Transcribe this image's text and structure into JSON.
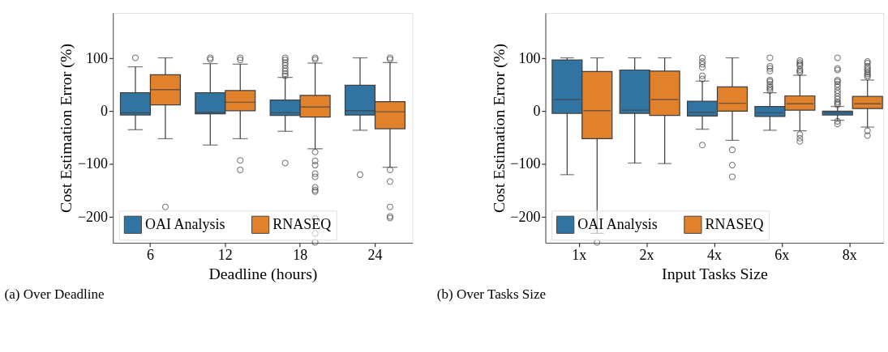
{
  "chart_data": [
    {
      "type": "box",
      "xlabel": "Deadline (hours)",
      "ylabel": "Cost Estimation Error (%)",
      "categories": [
        "6",
        "12",
        "18",
        "24"
      ],
      "ylim": [
        -250,
        185
      ],
      "yticks": [
        -200,
        -100,
        0,
        100
      ],
      "grid": false,
      "legend": "bottom left",
      "annotations": [
        "(a) Over Deadline"
      ],
      "series": [
        {
          "name": "OAI Analysis",
          "color": "#3274a1",
          "boxes": [
            {
              "low": -36,
              "q1": -8,
              "median": -4,
              "q3": 34,
              "high": 83,
              "outliers": [
                100
              ]
            },
            {
              "low": -65,
              "q1": -6,
              "median": -3,
              "q3": 34,
              "high": 89,
              "outliers": [
                97,
                100
              ]
            },
            {
              "low": -39,
              "q1": -9,
              "median": -4,
              "q3": 20,
              "high": 63,
              "outliers": [
                66,
                70,
                75,
                80,
                86,
                91,
                96,
                100,
                -99
              ]
            },
            {
              "low": -37,
              "q1": -8,
              "median": 0,
              "q3": 48,
              "high": 100,
              "outliers": [
                -121
              ]
            }
          ]
        },
        {
          "name": "RNASEQ",
          "color": "#e1812c",
          "boxes": [
            {
              "low": -53,
              "q1": 11,
              "median": 40,
              "q3": 68,
              "high": 100,
              "outliers": [
                -182
              ]
            },
            {
              "low": -53,
              "q1": 0,
              "median": 16,
              "q3": 38,
              "high": 88,
              "outliers": [
                96,
                100,
                -94,
                -112
              ]
            },
            {
              "low": -72,
              "q1": -12,
              "median": 7,
              "q3": 29,
              "high": 90,
              "outliers": [
                97,
                100,
                -78,
                -95,
                -103,
                -119,
                -125,
                -145,
                -150,
                -153,
                -204,
                -232,
                -249
              ]
            },
            {
              "low": -107,
              "q1": -34,
              "median": -2,
              "q3": 17,
              "high": 91,
              "outliers": [
                97,
                100,
                -112,
                -134,
                -182,
                -200,
                -203
              ]
            }
          ]
        }
      ]
    },
    {
      "type": "box",
      "xlabel": "Input Tasks Size",
      "ylabel": "Cost Estimation Error (%)",
      "categories": [
        "1x",
        "2x",
        "4x",
        "6x",
        "8x"
      ],
      "ylim": [
        -250,
        185
      ],
      "yticks": [
        -200,
        -100,
        0,
        100
      ],
      "grid": false,
      "legend": "bottom left",
      "annotations": [
        "(b) Over Tasks Size"
      ],
      "series": [
        {
          "name": "OAI Analysis",
          "color": "#3274a1",
          "boxes": [
            {
              "low": -121,
              "q1": -5,
              "median": 21,
              "q3": 96,
              "high": 100
            },
            {
              "low": -99,
              "q1": -5,
              "median": 1,
              "q3": 77,
              "high": 100
            },
            {
              "low": -35,
              "q1": -10,
              "median": -3,
              "q3": 18,
              "high": 56,
              "outliers": [
                60,
                66,
                82,
                88,
                93,
                100,
                -65
              ]
            },
            {
              "low": -37,
              "q1": -11,
              "median": -4,
              "q3": 8,
              "high": 34,
              "outliers": [
                38,
                42,
                45,
                50,
                55,
                58,
                75,
                80,
                84,
                100
              ]
            },
            {
              "low": -18,
              "q1": -8,
              "median": -4,
              "q3": -1,
              "high": 8,
              "outliers": [
                11,
                14,
                17,
                22,
                27,
                33,
                38,
                45,
                50,
                55,
                58,
                77,
                80,
                100,
                -20,
                -25
              ]
            }
          ]
        },
        {
          "name": "RNASEQ",
          "color": "#e1812c",
          "boxes": [
            {
              "low": -232,
              "q1": -53,
              "median": 0,
              "q3": 74,
              "high": 100,
              "outliers": [
                -249
              ]
            },
            {
              "low": -100,
              "q1": -9,
              "median": 21,
              "q3": 75,
              "high": 100
            },
            {
              "low": -56,
              "q1": -1,
              "median": 14,
              "q3": 45,
              "high": 100,
              "outliers": [
                -74,
                -103,
                -125
              ]
            },
            {
              "low": -38,
              "q1": 1,
              "median": 13,
              "q3": 28,
              "high": 67,
              "outliers": [
                72,
                75,
                78,
                85,
                88,
                91,
                95,
                -45,
                -52,
                -58
              ]
            },
            {
              "low": -31,
              "q1": 4,
              "median": 13,
              "q3": 27,
              "high": 58,
              "outliers": [
                64,
                67,
                70,
                73,
                77,
                80,
                84,
                90,
                93,
                -38,
                -47
              ]
            }
          ]
        }
      ]
    }
  ]
}
